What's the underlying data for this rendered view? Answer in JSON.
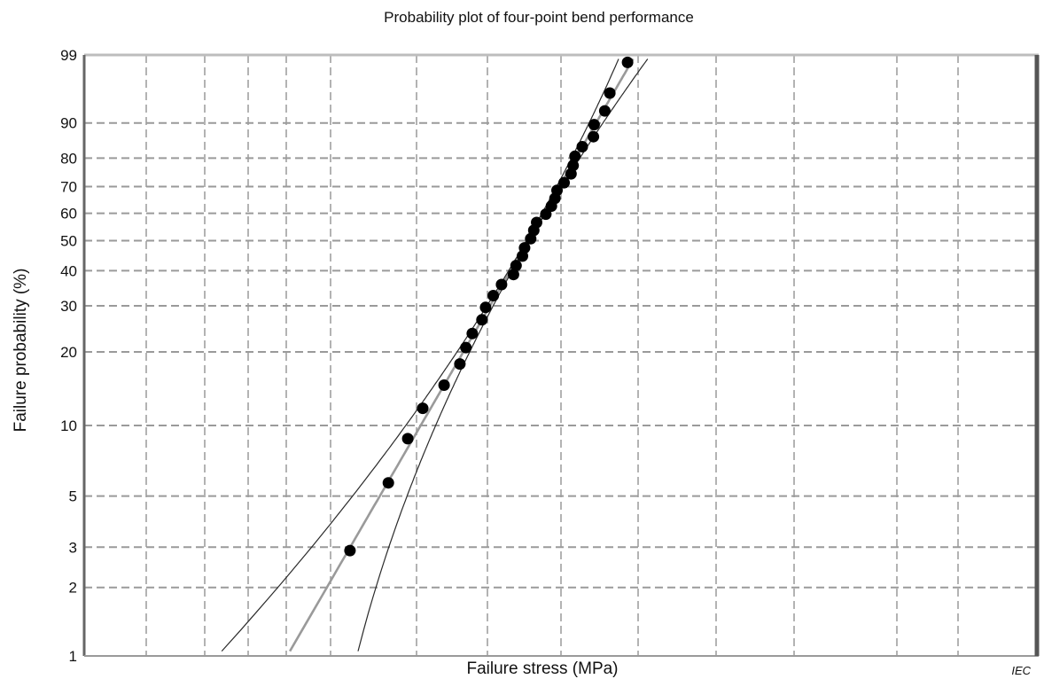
{
  "chart_data": {
    "type": "scatter",
    "title": "Probability plot of four-point bend performance",
    "xlabel": "Failure stress  (MPa)",
    "ylabel": "Failure probability  (%)",
    "y_scale": "weibull-probability",
    "ylim": [
      1,
      99
    ],
    "y_ticks": [
      "99",
      "90",
      "80",
      "70",
      "60",
      "50",
      "40",
      "30",
      "20",
      "10",
      "5",
      "3",
      "2",
      "1"
    ],
    "x_ticks": [],
    "grid": true,
    "legend": "none",
    "watermark": "IEC",
    "colors": {
      "points": "#000000",
      "fit_line": "#9a9a9a",
      "confidence_bounds": "#2a2a2a",
      "grid": "#9a9a9a",
      "frame_right": "#555555"
    },
    "series": [
      {
        "kind": "points",
        "note": "failure probability (%) of the 33 specimens, in rank order",
        "values": [
          2.9,
          5.7,
          8.8,
          11.8,
          14.7,
          17.9,
          20.8,
          23.6,
          26.6,
          29.6,
          32.7,
          35.8,
          38.8,
          41.6,
          44.7,
          47.5,
          50.7,
          53.7,
          56.6,
          59.7,
          62.7,
          65.6,
          68.6,
          71.4,
          74.6,
          77.5,
          80.6,
          83.6,
          86.5,
          89.6,
          92.6,
          95.6,
          98.6
        ]
      },
      {
        "kind": "fit_line"
      },
      {
        "kind": "confidence_bound",
        "side": "upper"
      },
      {
        "kind": "confidence_bound",
        "side": "lower"
      }
    ]
  }
}
